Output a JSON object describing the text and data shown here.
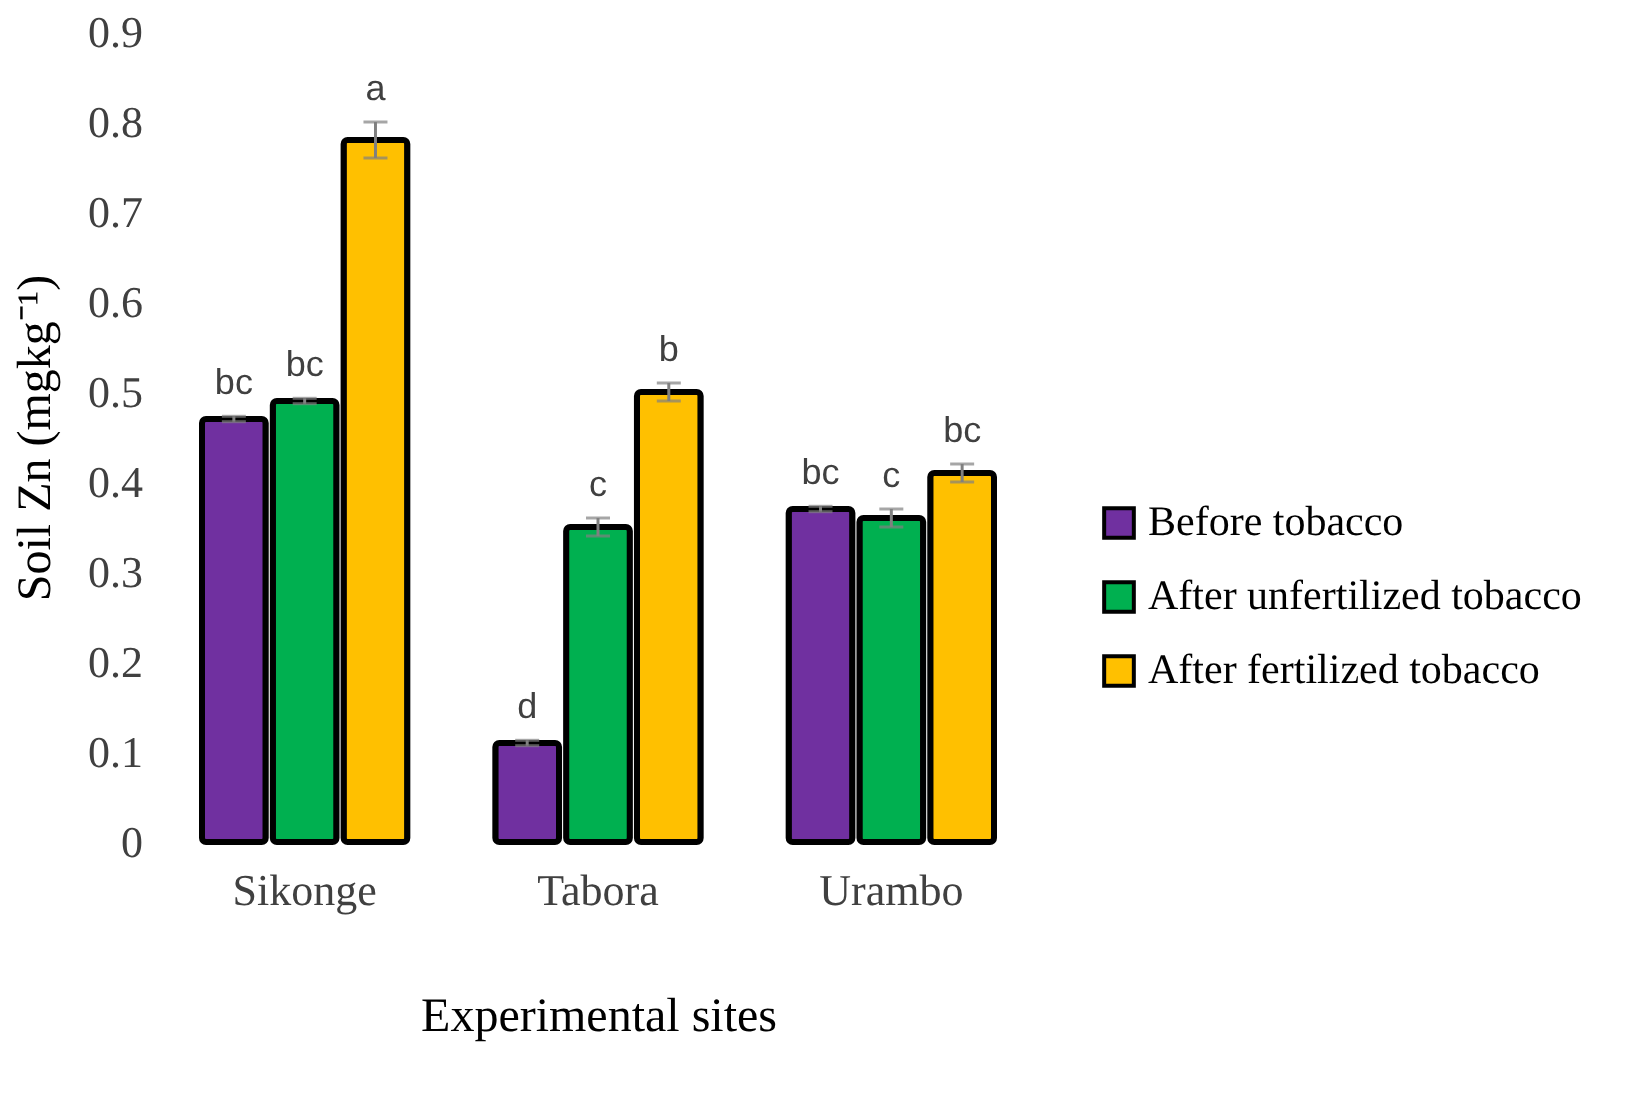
{
  "chart_data": {
    "type": "bar",
    "xlabel": "Experimental sites",
    "ylabel": "Soil Zn (mgkg⁻¹)",
    "categories": [
      "Sikonge",
      "Tabora",
      "Urambo"
    ],
    "series": [
      {
        "name": "Before tobacco",
        "color": "#7030a0",
        "values": [
          0.47,
          0.11,
          0.37
        ],
        "errors": [
          0.003,
          0.003,
          0.003
        ]
      },
      {
        "name": "After unfertilized tobacco",
        "color": "#00b050",
        "values": [
          0.49,
          0.35,
          0.36
        ],
        "errors": [
          0.003,
          0.01,
          0.01
        ]
      },
      {
        "name": "After fertilized tobacco",
        "color": "#ffc000",
        "values": [
          0.78,
          0.5,
          0.41
        ],
        "errors": [
          0.02,
          0.01,
          0.01
        ]
      }
    ],
    "ylim": [
      0,
      0.9
    ],
    "yticks": [
      0,
      0.1,
      0.2,
      0.3,
      0.4,
      0.5,
      0.6,
      0.7,
      0.8,
      0.9
    ],
    "grid": false,
    "legend": "right",
    "annotations": [
      "bc",
      "bc",
      "a",
      "d",
      "c",
      "b",
      "bc",
      "c",
      "bc"
    ]
  }
}
